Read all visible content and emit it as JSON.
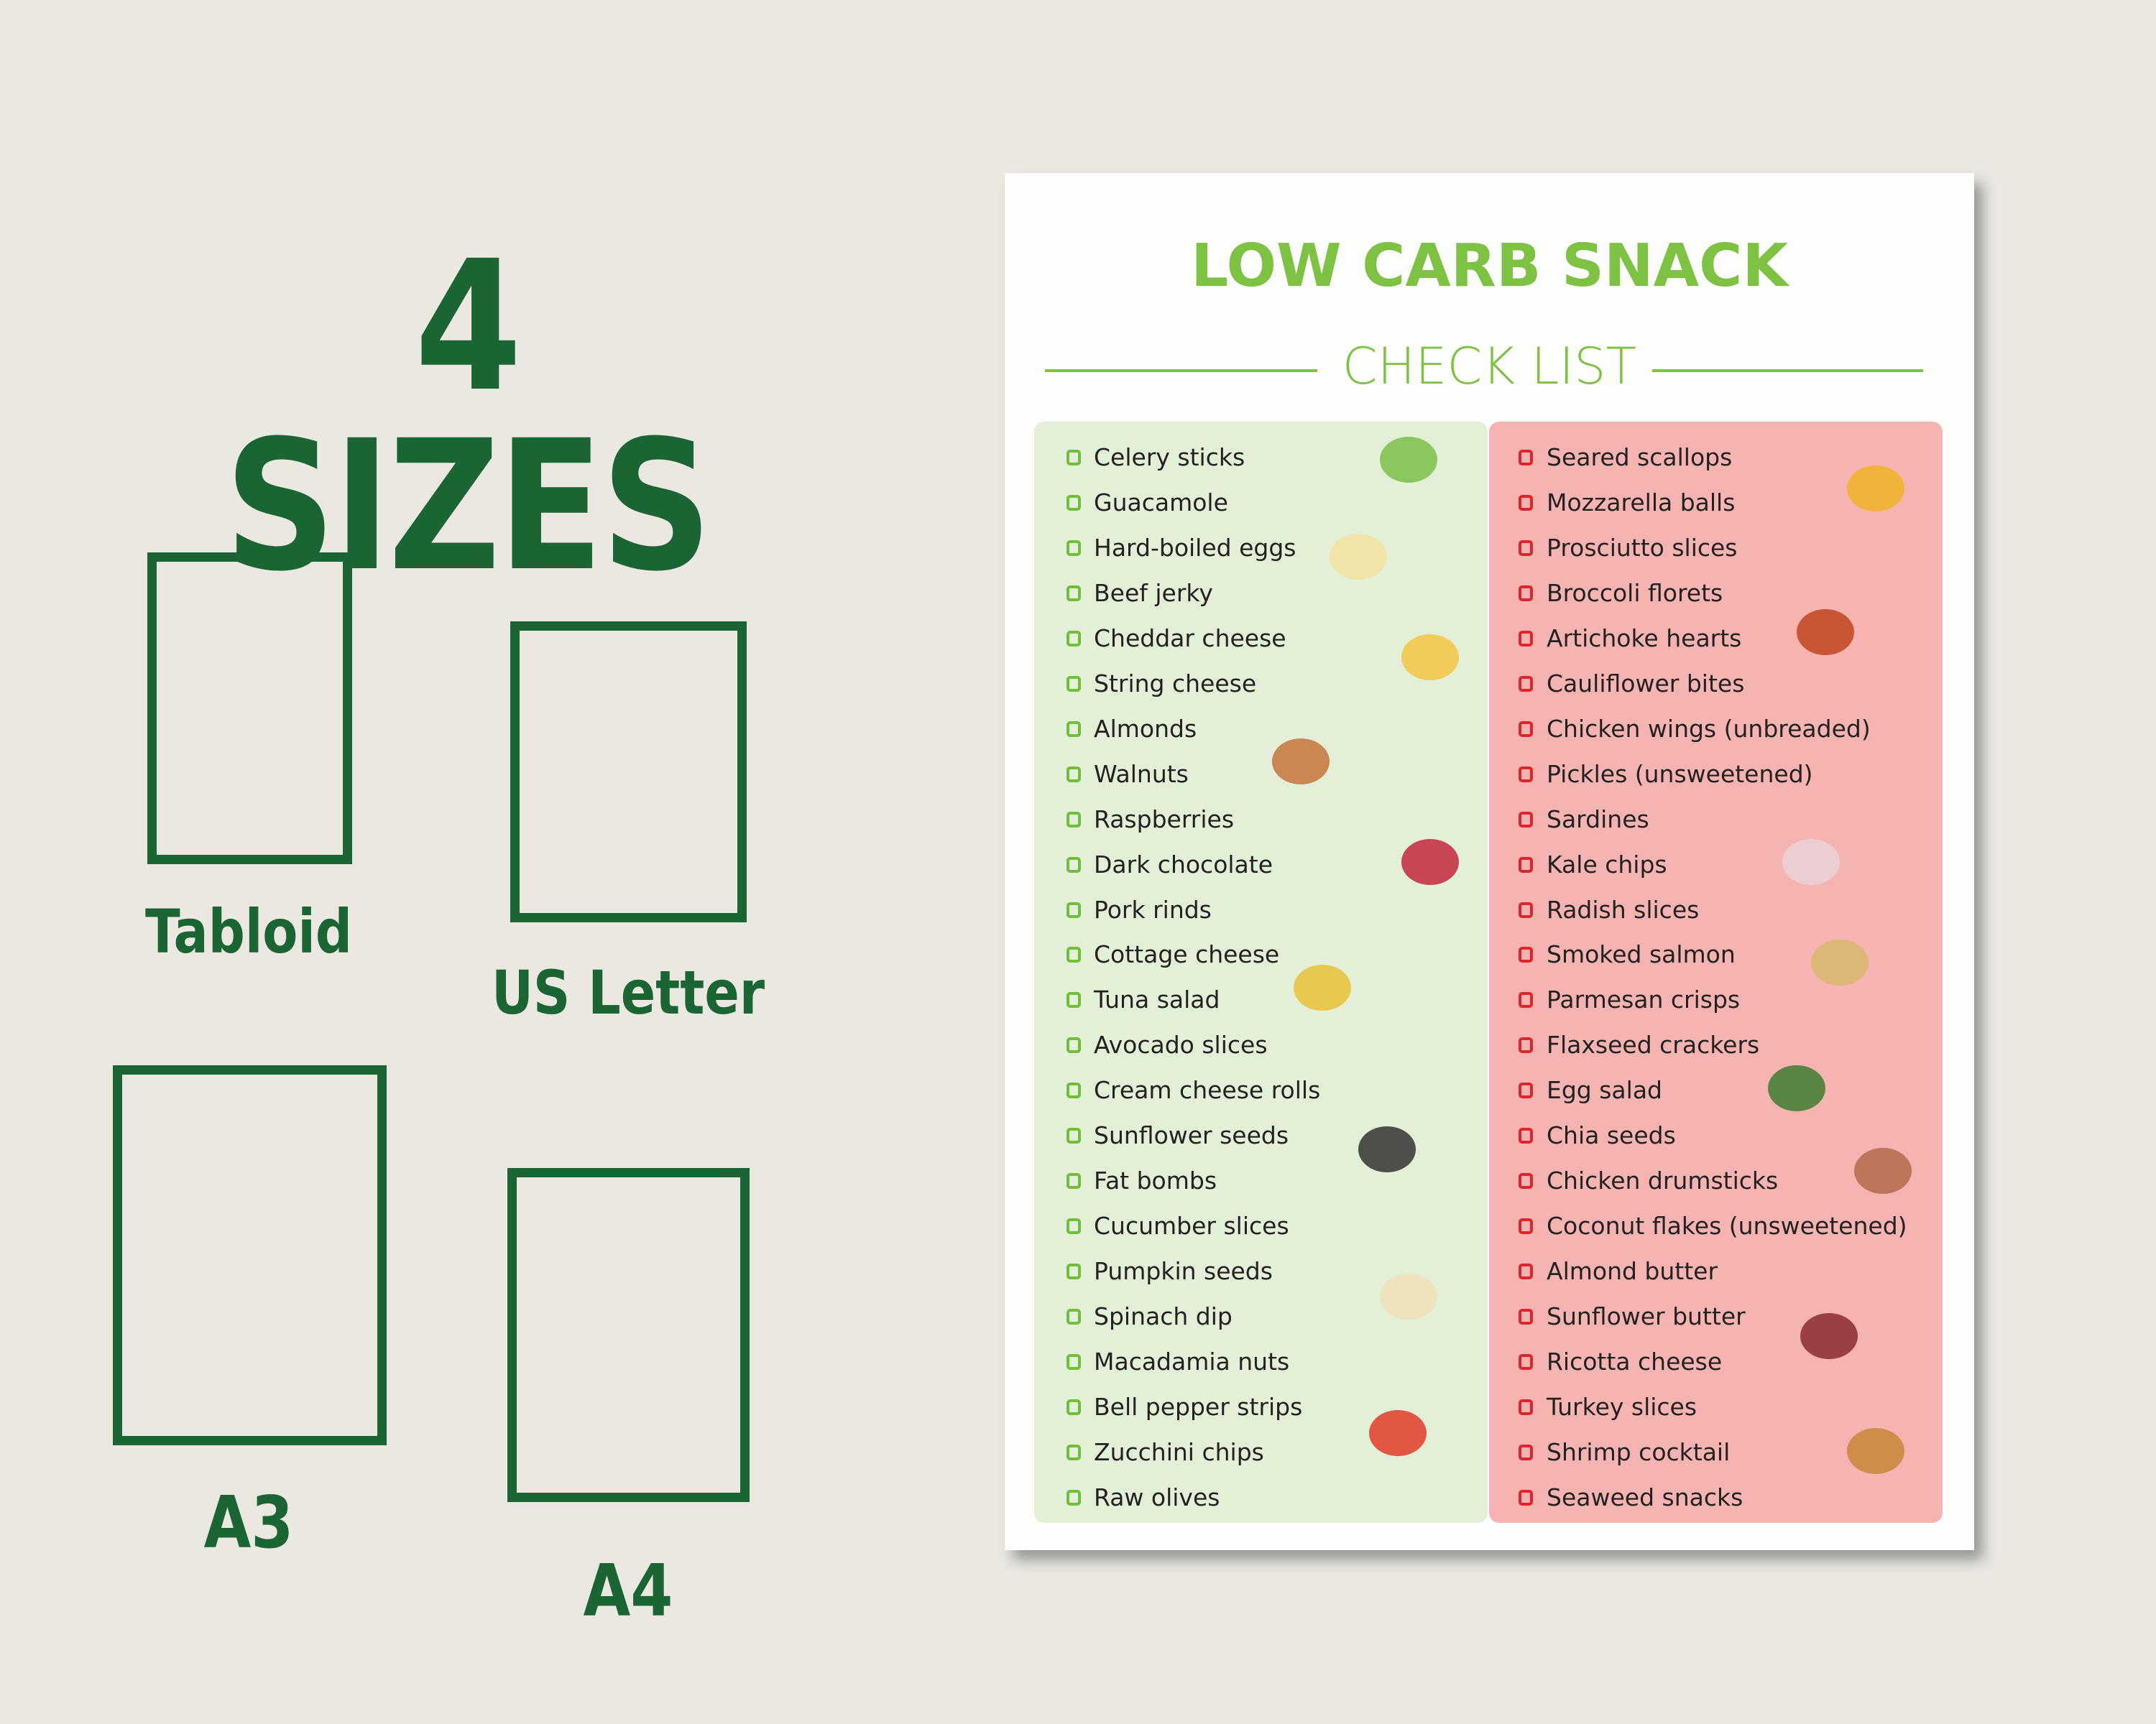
{
  "headline": "4 SIZES",
  "sizes": [
    {
      "label": "Tabloid"
    },
    {
      "label": "US Letter"
    },
    {
      "label": "A3"
    },
    {
      "label": "A4"
    }
  ],
  "checklist": {
    "title": "LOW CARB SNACK",
    "subtitle": "CHECK LIST",
    "left_items": [
      "Celery sticks",
      "Guacamole",
      "Hard-boiled eggs",
      "Beef jerky",
      "Cheddar cheese",
      "String cheese",
      "Almonds",
      "Walnuts",
      "Raspberries",
      "Dark chocolate",
      "Pork rinds",
      "Cottage cheese",
      "Tuna salad",
      "Avocado slices",
      "Cream cheese rolls",
      "Sunflower seeds",
      "Fat bombs",
      "Cucumber slices",
      "Pumpkin seeds",
      "Spinach dip",
      "Macadamia nuts",
      "Bell pepper strips",
      "Zucchini chips",
      "Raw olives"
    ],
    "right_items": [
      "Seared scallops",
      "Mozzarella balls",
      "Prosciutto slices",
      "Broccoli florets",
      "Artichoke hearts",
      "Cauliflower bites",
      "Chicken wings (unbreaded)",
      "Pickles (unsweetened)",
      "Sardines",
      "Kale chips",
      "Radish slices",
      "Smoked salmon",
      "Parmesan crisps",
      "Flaxseed crackers",
      "Egg salad",
      "Chia seeds",
      "Chicken drumsticks",
      "Coconut flakes (unsweetened)",
      "Almond butter",
      "Sunflower butter",
      "Ricotta cheese",
      "Turkey slices",
      "Shrimp cocktail",
      "Seaweed snacks"
    ]
  }
}
